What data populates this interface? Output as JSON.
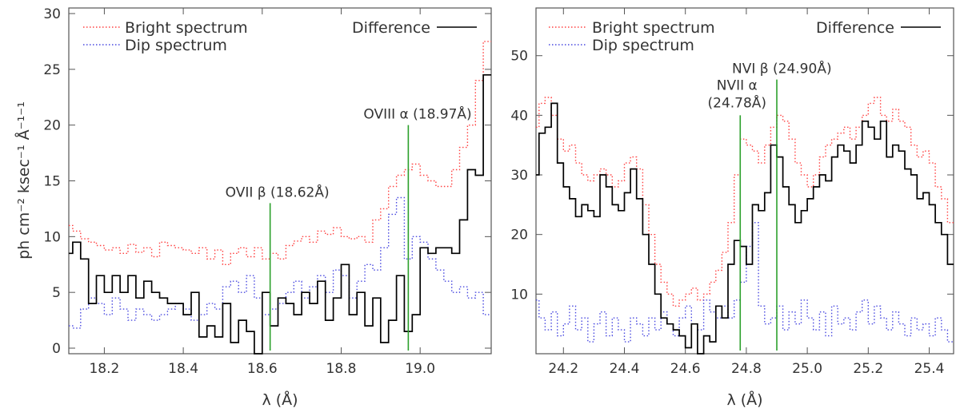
{
  "chart_data": [
    {
      "type": "line",
      "panel": "left",
      "xlabel": "λ (Å)",
      "ylabel": "ph cm⁻² ksec⁻¹ Å⁻¹⁻¹",
      "xlim": [
        18.11,
        19.18
      ],
      "ylim": [
        -0.5,
        30.5
      ],
      "xticks": [
        18.2,
        18.4,
        18.6,
        18.8,
        19.0
      ],
      "xtick_labels": [
        "18.2",
        "18.4",
        "18.6",
        "18.8",
        "19.0"
      ],
      "yticks": [
        0,
        5,
        10,
        15,
        20,
        25,
        30
      ],
      "ytick_labels": [
        "0",
        "5",
        "10",
        "15",
        "20",
        "25",
        "30"
      ],
      "legend": {
        "bright": "Bright spectrum",
        "dip": "Dip spectrum",
        "difference": "Difference"
      },
      "series": [
        {
          "name": "Bright spectrum",
          "color": "#ff4040",
          "style": "dotted",
          "x": [
            18.11,
            18.13,
            18.15,
            18.17,
            18.19,
            18.21,
            18.23,
            18.25,
            18.27,
            18.29,
            18.31,
            18.33,
            18.35,
            18.37,
            18.39,
            18.41,
            18.43,
            18.45,
            18.47,
            18.49,
            18.51,
            18.53,
            18.55,
            18.57,
            18.59,
            18.61,
            18.63,
            18.65,
            18.67,
            18.69,
            18.71,
            18.73,
            18.75,
            18.77,
            18.79,
            18.81,
            18.83,
            18.85,
            18.87,
            18.89,
            18.91,
            18.93,
            18.95,
            18.97,
            18.99,
            19.01,
            19.03,
            19.05,
            19.07,
            19.09,
            19.11,
            19.13,
            19.15,
            19.17
          ],
          "y": [
            11.0,
            10.5,
            9.8,
            9.5,
            9.2,
            8.8,
            9.0,
            8.5,
            9.3,
            8.6,
            9.0,
            8.2,
            9.5,
            9.2,
            9.0,
            8.8,
            8.5,
            9.0,
            8.0,
            8.8,
            7.5,
            8.5,
            9.0,
            8.2,
            9.0,
            8.0,
            8.5,
            8.0,
            9.2,
            9.6,
            10.0,
            9.5,
            10.5,
            10.2,
            10.8,
            10.0,
            9.8,
            10.0,
            9.5,
            11.5,
            12.5,
            14.5,
            15.5,
            16.0,
            16.5,
            15.5,
            15.0,
            14.5,
            14.5,
            16.0,
            18.0,
            20.0,
            24.0,
            27.5
          ]
        },
        {
          "name": "Dip spectrum",
          "color": "#4848e0",
          "style": "dotted",
          "x": [
            18.11,
            18.13,
            18.15,
            18.17,
            18.19,
            18.21,
            18.23,
            18.25,
            18.27,
            18.29,
            18.31,
            18.33,
            18.35,
            18.37,
            18.39,
            18.41,
            18.43,
            18.45,
            18.47,
            18.49,
            18.51,
            18.53,
            18.55,
            18.57,
            18.59,
            18.61,
            18.63,
            18.65,
            18.67,
            18.69,
            18.71,
            18.73,
            18.75,
            18.77,
            18.79,
            18.81,
            18.83,
            18.85,
            18.87,
            18.89,
            18.91,
            18.93,
            18.95,
            18.97,
            18.99,
            19.01,
            19.03,
            19.05,
            19.07,
            19.09,
            19.11,
            19.13,
            19.15,
            19.17
          ],
          "y": [
            2.0,
            1.8,
            3.5,
            4.5,
            4.0,
            3.0,
            4.5,
            3.5,
            2.5,
            3.5,
            3.0,
            2.5,
            3.0,
            3.5,
            4.0,
            3.5,
            2.5,
            3.0,
            4.0,
            3.5,
            5.5,
            6.0,
            5.0,
            6.5,
            4.5,
            3.0,
            3.5,
            4.0,
            5.0,
            6.0,
            4.5,
            5.5,
            6.5,
            5.0,
            7.0,
            6.5,
            4.5,
            6.0,
            7.5,
            7.0,
            9.0,
            12.0,
            13.5,
            8.0,
            10.0,
            9.5,
            8.0,
            7.0,
            6.0,
            5.0,
            5.5,
            4.5,
            5.0,
            3.0
          ]
        },
        {
          "name": "Difference",
          "color": "#000000",
          "style": "solid",
          "x": [
            18.11,
            18.13,
            18.15,
            18.17,
            18.19,
            18.21,
            18.23,
            18.25,
            18.27,
            18.29,
            18.31,
            18.33,
            18.35,
            18.37,
            18.39,
            18.41,
            18.43,
            18.45,
            18.47,
            18.49,
            18.51,
            18.53,
            18.55,
            18.57,
            18.59,
            18.61,
            18.63,
            18.65,
            18.67,
            18.69,
            18.71,
            18.73,
            18.75,
            18.77,
            18.79,
            18.81,
            18.83,
            18.85,
            18.87,
            18.89,
            18.91,
            18.93,
            18.95,
            18.97,
            18.99,
            19.01,
            19.03,
            19.05,
            19.07,
            19.09,
            19.11,
            19.13,
            19.15,
            19.17
          ],
          "y": [
            8.5,
            9.5,
            8.0,
            4.0,
            6.5,
            5.0,
            6.5,
            5.0,
            6.5,
            4.5,
            6.0,
            5.0,
            4.5,
            4.0,
            4.0,
            3.0,
            5.0,
            1.0,
            2.0,
            1.0,
            4.0,
            0.5,
            2.5,
            1.5,
            -0.5,
            5.0,
            2.0,
            4.5,
            4.0,
            3.0,
            5.0,
            4.0,
            6.0,
            2.5,
            4.5,
            7.5,
            3.0,
            5.0,
            2.0,
            4.5,
            0.5,
            2.5,
            6.5,
            1.5,
            3.0,
            9.0,
            8.5,
            9.0,
            9.0,
            8.5,
            11.5,
            16.0,
            15.5,
            24.5
          ]
        }
      ],
      "annotations": [
        {
          "text": "OVII β  (18.62Å)",
          "x": 18.62,
          "ymax": 13.0,
          "color": "#2ca02c"
        },
        {
          "text": "OVIII α  (18.97Å)",
          "x": 18.97,
          "ymax": 20.0,
          "color": "#2ca02c"
        }
      ]
    },
    {
      "type": "line",
      "panel": "right",
      "xlabel": "λ (Å)",
      "xlim": [
        24.11,
        25.48
      ],
      "ylim": [
        0,
        58
      ],
      "xticks": [
        24.2,
        24.4,
        24.6,
        24.8,
        25.0,
        25.2,
        25.4
      ],
      "xtick_labels": [
        "24.2",
        "24.4",
        "24.6",
        "24.8",
        "25.0",
        "25.2",
        "25.4"
      ],
      "yticks": [
        10,
        20,
        30,
        40,
        50
      ],
      "ytick_labels": [
        "10",
        "20",
        "30",
        "40",
        "50"
      ],
      "legend": {
        "bright": "Bright spectrum",
        "dip": "Dip spectrum",
        "difference": "Difference"
      },
      "series": [
        {
          "name": "Bright spectrum",
          "color": "#ff4040",
          "style": "dotted",
          "x": [
            24.11,
            24.13,
            24.15,
            24.17,
            24.19,
            24.21,
            24.23,
            24.25,
            24.27,
            24.29,
            24.31,
            24.33,
            24.35,
            24.37,
            24.39,
            24.41,
            24.43,
            24.45,
            24.47,
            24.49,
            24.51,
            24.53,
            24.55,
            24.57,
            24.59,
            24.61,
            24.63,
            24.65,
            24.67,
            24.69,
            24.71,
            24.73,
            24.75,
            24.77,
            24.79,
            24.81,
            24.83,
            24.85,
            24.87,
            24.89,
            24.91,
            24.93,
            24.95,
            24.97,
            24.99,
            25.01,
            25.03,
            25.05,
            25.07,
            25.09,
            25.11,
            25.13,
            25.15,
            25.17,
            25.19,
            25.21,
            25.23,
            25.25,
            25.27,
            25.29,
            25.31,
            25.33,
            25.35,
            25.37,
            25.39,
            25.41,
            25.43,
            25.45,
            25.47
          ],
          "y": [
            38,
            42,
            43,
            40,
            36,
            34,
            35,
            32,
            30,
            29,
            30,
            31,
            30,
            28,
            29,
            32,
            33,
            31,
            25,
            20,
            15,
            12,
            10,
            8,
            9,
            10,
            11,
            9,
            10,
            12,
            14,
            17,
            22,
            30,
            36,
            35,
            34,
            32,
            35,
            38,
            40,
            39,
            36,
            32,
            30,
            28,
            30,
            33,
            35,
            36,
            37,
            38,
            36,
            38,
            40,
            42,
            43,
            40,
            39,
            41,
            39,
            38,
            35,
            33,
            34,
            32,
            28,
            26,
            22
          ]
        },
        {
          "name": "Dip spectrum",
          "color": "#4848e0",
          "style": "dotted",
          "x": [
            24.11,
            24.13,
            24.15,
            24.17,
            24.19,
            24.21,
            24.23,
            24.25,
            24.27,
            24.29,
            24.31,
            24.33,
            24.35,
            24.37,
            24.39,
            24.41,
            24.43,
            24.45,
            24.47,
            24.49,
            24.51,
            24.53,
            24.55,
            24.57,
            24.59,
            24.61,
            24.63,
            24.65,
            24.67,
            24.69,
            24.71,
            24.73,
            24.75,
            24.77,
            24.79,
            24.81,
            24.83,
            24.85,
            24.87,
            24.89,
            24.91,
            24.93,
            24.95,
            24.97,
            24.99,
            25.01,
            25.03,
            25.05,
            25.07,
            25.09,
            25.11,
            25.13,
            25.15,
            25.17,
            25.19,
            25.21,
            25.23,
            25.25,
            25.27,
            25.29,
            25.31,
            25.33,
            25.35,
            25.37,
            25.39,
            25.41,
            25.43,
            25.45,
            25.47
          ],
          "y": [
            9,
            6,
            4,
            7,
            3,
            5,
            8,
            4,
            6,
            2,
            5,
            7,
            3,
            6,
            4,
            2,
            6,
            5,
            3,
            6,
            4,
            7,
            5,
            3,
            6,
            8,
            5,
            4,
            9,
            7,
            6,
            8,
            6,
            9,
            12,
            18,
            22,
            8,
            5,
            6,
            8,
            4,
            7,
            5,
            9,
            6,
            4,
            7,
            3,
            8,
            5,
            6,
            4,
            7,
            9,
            5,
            8,
            6,
            4,
            7,
            5,
            3,
            6,
            4,
            5,
            3,
            6,
            4,
            2
          ]
        },
        {
          "name": "Difference",
          "color": "#000000",
          "style": "solid",
          "x": [
            24.11,
            24.13,
            24.15,
            24.17,
            24.19,
            24.21,
            24.23,
            24.25,
            24.27,
            24.29,
            24.31,
            24.33,
            24.35,
            24.37,
            24.39,
            24.41,
            24.43,
            24.45,
            24.47,
            24.49,
            24.51,
            24.53,
            24.55,
            24.57,
            24.59,
            24.61,
            24.63,
            24.65,
            24.67,
            24.69,
            24.71,
            24.73,
            24.75,
            24.77,
            24.79,
            24.81,
            24.83,
            24.85,
            24.87,
            24.89,
            24.91,
            24.93,
            24.95,
            24.97,
            24.99,
            25.01,
            25.03,
            25.05,
            25.07,
            25.09,
            25.11,
            25.13,
            25.15,
            25.17,
            25.19,
            25.21,
            25.23,
            25.25,
            25.27,
            25.29,
            25.31,
            25.33,
            25.35,
            25.37,
            25.39,
            25.41,
            25.43,
            25.45,
            25.47
          ],
          "y": [
            30,
            37,
            38,
            42,
            32,
            28,
            26,
            23,
            25,
            24,
            23,
            30,
            28,
            25,
            24,
            27,
            31,
            26,
            20,
            15,
            10,
            6,
            5,
            4,
            3,
            1,
            5,
            0,
            3,
            2,
            8,
            6,
            15,
            19,
            18,
            15,
            25,
            24,
            27,
            35,
            33,
            28,
            25,
            22,
            24,
            26,
            28,
            30,
            29,
            33,
            35,
            34,
            32,
            35,
            39,
            38,
            36,
            39,
            33,
            35,
            34,
            31,
            30,
            26,
            27,
            25,
            22,
            20,
            15
          ]
        }
      ],
      "annotations": [
        {
          "text_line1": "NVII α",
          "text_line2": "(24.78Å)",
          "x": 24.78,
          "ymax": 40.0,
          "color": "#2ca02c"
        },
        {
          "text": "NVI β  (24.90Å)",
          "x": 24.9,
          "ymax": 46.0,
          "color": "#2ca02c"
        }
      ]
    }
  ]
}
